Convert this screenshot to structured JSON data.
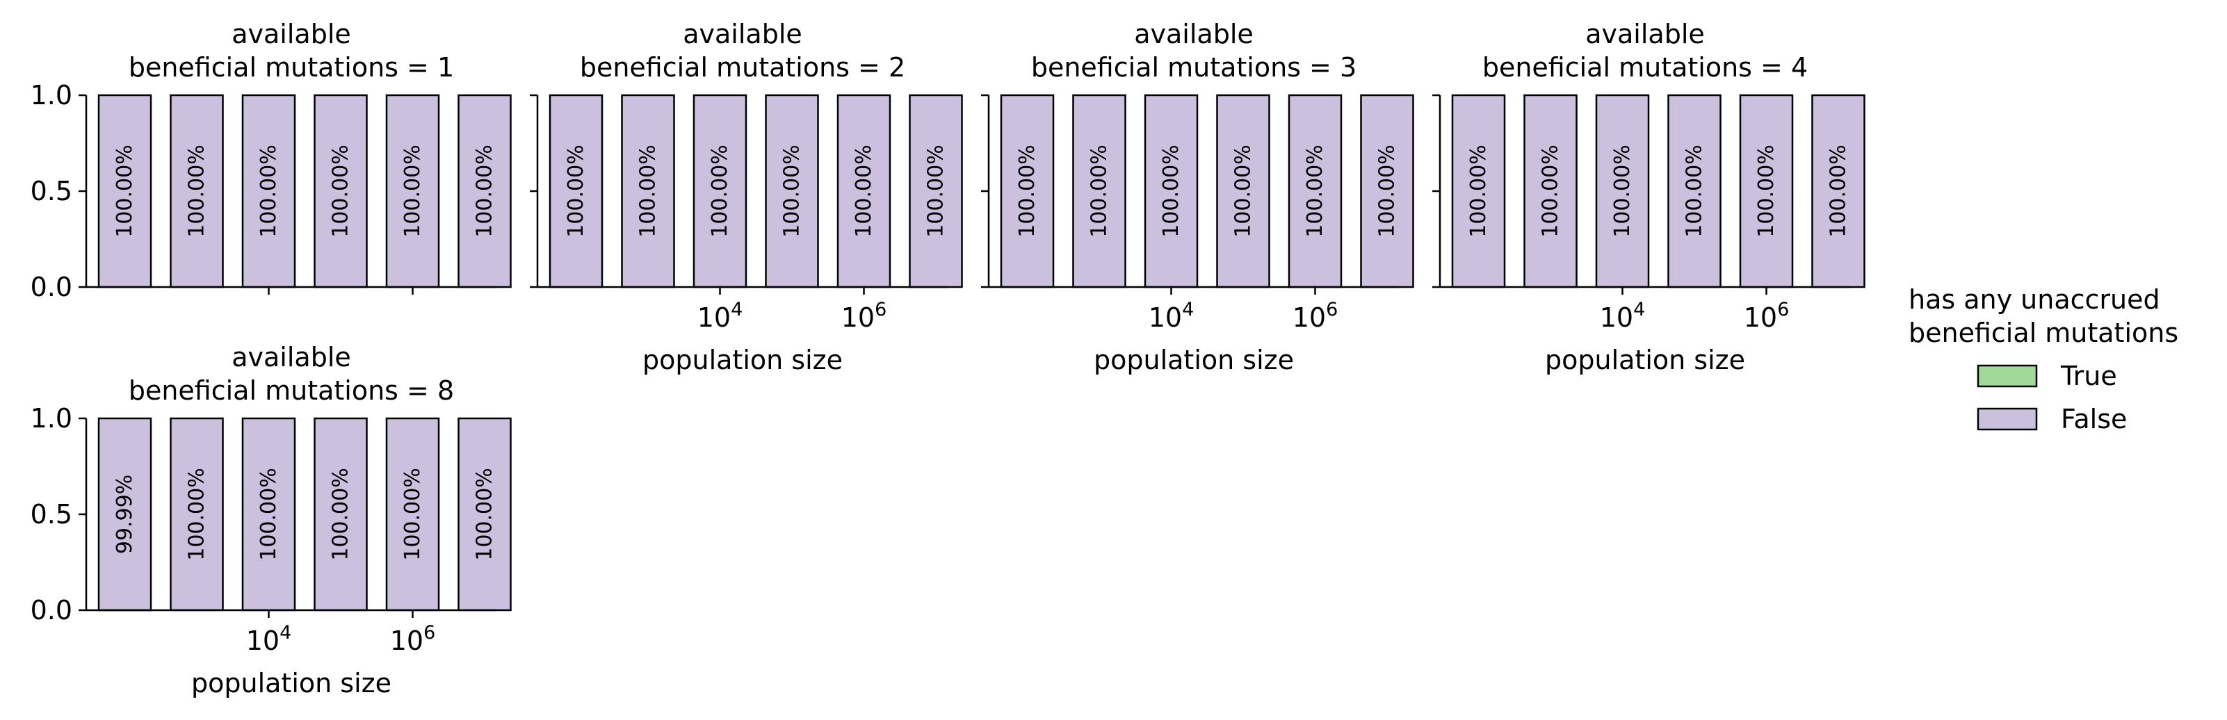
{
  "chart_data": [
    {
      "type": "bar",
      "title_lines": [
        "available",
        "beneficial mutations = 1"
      ],
      "x_scale": "log",
      "xticks": [
        {
          "value": 10000,
          "base": "10",
          "exp": "4"
        },
        {
          "value": 1000000,
          "base": "10",
          "exp": "6"
        }
      ],
      "xlabel": "",
      "ylim": [
        0,
        1
      ],
      "yticks": [
        "0.0",
        "0.5",
        "1.0"
      ],
      "categories": [
        "100",
        "1000",
        "10000",
        "100000",
        "1000000",
        "10000000"
      ],
      "series": [
        {
          "name": "True",
          "color": "#a1d99b",
          "values": [
            0,
            0,
            0,
            0,
            0,
            0
          ]
        },
        {
          "name": "False",
          "color": "#cbc1de",
          "values": [
            1,
            1,
            1,
            1,
            1,
            1
          ]
        }
      ],
      "bar_labels": [
        "100.00%",
        "100.00%",
        "100.00%",
        "100.00%",
        "100.00%",
        "100.00%"
      ]
    },
    {
      "type": "bar",
      "title_lines": [
        "available",
        "beneficial mutations = 2"
      ],
      "x_scale": "log",
      "xticks": [
        {
          "value": 10000,
          "base": "10",
          "exp": "4"
        },
        {
          "value": 1000000,
          "base": "10",
          "exp": "6"
        }
      ],
      "xlabel": "population size",
      "ylim": [
        0,
        1
      ],
      "yticks": [
        "",
        "",
        ""
      ],
      "categories": [
        "100",
        "1000",
        "10000",
        "100000",
        "1000000",
        "10000000"
      ],
      "series": [
        {
          "name": "True",
          "color": "#a1d99b",
          "values": [
            0,
            0,
            0,
            0,
            0,
            0
          ]
        },
        {
          "name": "False",
          "color": "#cbc1de",
          "values": [
            1,
            1,
            1,
            1,
            1,
            1
          ]
        }
      ],
      "bar_labels": [
        "100.00%",
        "100.00%",
        "100.00%",
        "100.00%",
        "100.00%",
        "100.00%"
      ]
    },
    {
      "type": "bar",
      "title_lines": [
        "available",
        "beneficial mutations = 3"
      ],
      "x_scale": "log",
      "xticks": [
        {
          "value": 10000,
          "base": "10",
          "exp": "4"
        },
        {
          "value": 1000000,
          "base": "10",
          "exp": "6"
        }
      ],
      "xlabel": "population size",
      "ylim": [
        0,
        1
      ],
      "yticks": [
        "",
        "",
        ""
      ],
      "categories": [
        "100",
        "1000",
        "10000",
        "100000",
        "1000000",
        "10000000"
      ],
      "series": [
        {
          "name": "True",
          "color": "#a1d99b",
          "values": [
            0,
            0,
            0,
            0,
            0,
            0
          ]
        },
        {
          "name": "False",
          "color": "#cbc1de",
          "values": [
            1,
            1,
            1,
            1,
            1,
            1
          ]
        }
      ],
      "bar_labels": [
        "100.00%",
        "100.00%",
        "100.00%",
        "100.00%",
        "100.00%",
        "100.00%"
      ]
    },
    {
      "type": "bar",
      "title_lines": [
        "available",
        "beneficial mutations = 4"
      ],
      "x_scale": "log",
      "xticks": [
        {
          "value": 10000,
          "base": "10",
          "exp": "4"
        },
        {
          "value": 1000000,
          "base": "10",
          "exp": "6"
        }
      ],
      "xlabel": "population size",
      "ylim": [
        0,
        1
      ],
      "yticks": [
        "",
        "",
        ""
      ],
      "categories": [
        "100",
        "1000",
        "10000",
        "100000",
        "1000000",
        "10000000"
      ],
      "series": [
        {
          "name": "True",
          "color": "#a1d99b",
          "values": [
            0,
            0,
            0,
            0,
            0,
            0
          ]
        },
        {
          "name": "False",
          "color": "#cbc1de",
          "values": [
            1,
            1,
            1,
            1,
            1,
            1
          ]
        }
      ],
      "bar_labels": [
        "100.00%",
        "100.00%",
        "100.00%",
        "100.00%",
        "100.00%",
        "100.00%"
      ]
    },
    {
      "type": "bar",
      "title_lines": [
        "available",
        "beneficial mutations = 8"
      ],
      "x_scale": "log",
      "xticks": [
        {
          "value": 10000,
          "base": "10",
          "exp": "4"
        },
        {
          "value": 1000000,
          "base": "10",
          "exp": "6"
        }
      ],
      "xlabel": "population size",
      "ylim": [
        0,
        1
      ],
      "yticks": [
        "0.0",
        "0.5",
        "1.0"
      ],
      "categories": [
        "100",
        "1000",
        "10000",
        "100000",
        "1000000",
        "10000000"
      ],
      "series": [
        {
          "name": "True",
          "color": "#a1d99b",
          "values": [
            0.0001,
            0,
            0,
            0,
            0,
            0
          ]
        },
        {
          "name": "False",
          "color": "#cbc1de",
          "values": [
            0.9999,
            1,
            1,
            1,
            1,
            1
          ]
        }
      ],
      "bar_labels": [
        "99.99%",
        "100.00%",
        "100.00%",
        "100.00%",
        "100.00%",
        "100.00%"
      ]
    }
  ],
  "legend": {
    "title_lines": [
      "has any unaccrued",
      "beneficial mutations"
    ],
    "entries": [
      {
        "label": "True",
        "color": "#a1d99b"
      },
      {
        "label": "False",
        "color": "#cbc1de"
      }
    ]
  }
}
